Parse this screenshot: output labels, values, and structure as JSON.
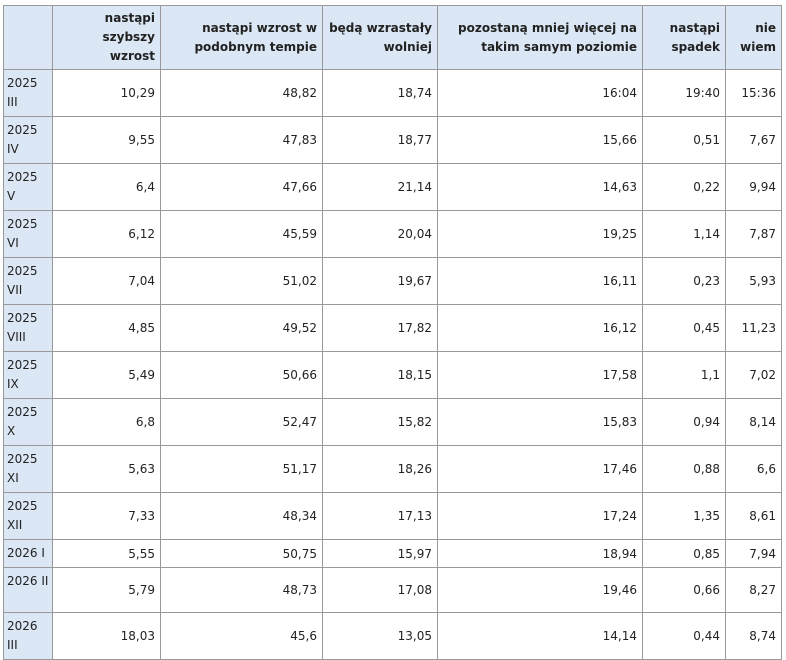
{
  "table": {
    "header": [
      "nastąpi szybszy wzrost",
      "nastąpi wzrost w podobnym tempie",
      "będą wzrastały wolniej",
      "pozostaną mniej więcej na takim samym poziomie",
      "nastąpi spadek",
      "nie wiem"
    ],
    "rows": [
      {
        "label": "2025 III",
        "cells": [
          "10,29",
          "48,82",
          "18,74",
          "16:04",
          "19:40",
          "15:36"
        ]
      },
      {
        "label": "2025 IV",
        "cells": [
          "9,55",
          "47,83",
          "18,77",
          "15,66",
          "0,51",
          "7,67"
        ]
      },
      {
        "label": "2025 V",
        "cells": [
          "6,4",
          "47,66",
          "21,14",
          "14,63",
          "0,22",
          "9,94"
        ]
      },
      {
        "label": "2025 VI",
        "cells": [
          "6,12",
          "45,59",
          "20,04",
          "19,25",
          "1,14",
          "7,87"
        ]
      },
      {
        "label": "2025 VII",
        "cells": [
          "7,04",
          "51,02",
          "19,67",
          "16,11",
          "0,23",
          "5,93"
        ]
      },
      {
        "label": "2025 VIII",
        "cells": [
          "4,85",
          "49,52",
          "17,82",
          "16,12",
          "0,45",
          "11,23"
        ]
      },
      {
        "label": "2025 IX",
        "cells": [
          "5,49",
          "50,66",
          "18,15",
          "17,58",
          "1,1",
          "7,02"
        ]
      },
      {
        "label": "2025 X",
        "cells": [
          "6,8",
          "52,47",
          "15,82",
          "15,83",
          "0,94",
          "8,14"
        ]
      },
      {
        "label": "2025 XI",
        "cells": [
          "5,63",
          "51,17",
          "18,26",
          "17,46",
          "0,88",
          "6,6"
        ]
      },
      {
        "label": "2025 XII",
        "cells": [
          "7,33",
          "48,34",
          "17,13",
          "17,24",
          "1,35",
          "8,61"
        ]
      },
      {
        "label": "2026 I",
        "cells": [
          "5,55",
          "50,75",
          "15,97",
          "18,94",
          "0,85",
          "7,94"
        ]
      },
      {
        "label": "2026 II",
        "cells": [
          "5,79",
          "48,73",
          "17,08",
          "19,46",
          "0,66",
          "8,27"
        ]
      },
      {
        "label": "2026 III",
        "cells": [
          "18,03",
          "45,6",
          "13,05",
          "14,14",
          "0,44",
          "8,74"
        ]
      }
    ]
  }
}
